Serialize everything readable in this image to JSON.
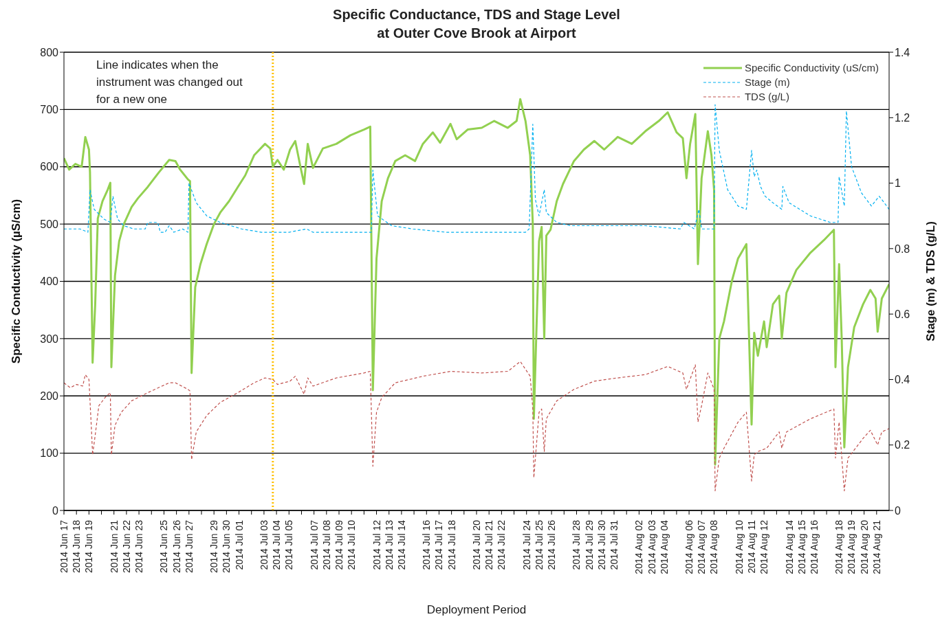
{
  "chart_data": {
    "type": "line",
    "title": "Specific Conductance, TDS and Stage Level\nat Outer Cove Brook at Airport",
    "xlabel": "Deployment Period",
    "ylabel": "Specific Conductivity  (µS/cm)",
    "y2label": "Stage (m) & TDS (g/L)",
    "annotations": [
      "Line indicates when the instrument was changed out for a new one"
    ],
    "xlim": [
      "2014-06-17",
      "2014-08-22"
    ],
    "xticks": [
      {
        "value": "2014-06-17",
        "label": "2014 Jun 17"
      },
      {
        "value": "2014-06-18",
        "label": "2014 Jun 18"
      },
      {
        "value": "2014-06-19",
        "label": "2014 Jun 19"
      },
      {
        "value": "2014-06-20",
        "label": null
      },
      {
        "value": "2014-06-21",
        "label": "2014 Jun 21"
      },
      {
        "value": "2014-06-22",
        "label": "2014 Jun 22"
      },
      {
        "value": "2014-06-23",
        "label": "2014 Jun 23"
      },
      {
        "value": "2014-06-24",
        "label": null
      },
      {
        "value": "2014-06-25",
        "label": "2014 Jun 25"
      },
      {
        "value": "2014-06-26",
        "label": "2014 Jun 26"
      },
      {
        "value": "2014-06-27",
        "label": "2014 Jun 27"
      },
      {
        "value": "2014-06-28",
        "label": null
      },
      {
        "value": "2014-06-29",
        "label": "2014 Jun 29"
      },
      {
        "value": "2014-06-30",
        "label": "2014 Jun 30"
      },
      {
        "value": "2014-07-01",
        "label": "2014 Jul 01"
      },
      {
        "value": "2014-07-02",
        "label": null
      },
      {
        "value": "2014-07-03",
        "label": "2014 Jul 03"
      },
      {
        "value": "2014-07-04",
        "label": "2014 Jul 04"
      },
      {
        "value": "2014-07-05",
        "label": "2014 Jul 05"
      },
      {
        "value": "2014-07-06",
        "label": null
      },
      {
        "value": "2014-07-07",
        "label": "2014 Jul 07"
      },
      {
        "value": "2014-07-08",
        "label": "2014 Jul 08"
      },
      {
        "value": "2014-07-09",
        "label": "2014 Jul 09"
      },
      {
        "value": "2014-07-10",
        "label": "2014 Jul 10"
      },
      {
        "value": "2014-07-11",
        "label": null
      },
      {
        "value": "2014-07-12",
        "label": "2014 Jul 12"
      },
      {
        "value": "2014-07-13",
        "label": "2014 Jul 13"
      },
      {
        "value": "2014-07-14",
        "label": "2014 Jul 14"
      },
      {
        "value": "2014-07-15",
        "label": null
      },
      {
        "value": "2014-07-16",
        "label": "2014 Jul 16"
      },
      {
        "value": "2014-07-17",
        "label": "2014 Jul 17"
      },
      {
        "value": "2014-07-18",
        "label": "2014 Jul 18"
      },
      {
        "value": "2014-07-19",
        "label": null
      },
      {
        "value": "2014-07-20",
        "label": "2014 Jul 20"
      },
      {
        "value": "2014-07-21",
        "label": "2014 Jul 21"
      },
      {
        "value": "2014-07-22",
        "label": "2014 Jul 22"
      },
      {
        "value": "2014-07-23",
        "label": null
      },
      {
        "value": "2014-07-24",
        "label": "2014 Jul 24"
      },
      {
        "value": "2014-07-25",
        "label": "2014 Jul 25"
      },
      {
        "value": "2014-07-26",
        "label": "2014 Jul 26"
      },
      {
        "value": "2014-07-27",
        "label": null
      },
      {
        "value": "2014-07-28",
        "label": "2014 Jul 28"
      },
      {
        "value": "2014-07-29",
        "label": "2014 Jul 29"
      },
      {
        "value": "2014-07-30",
        "label": "2014 Jul 30"
      },
      {
        "value": "2014-07-31",
        "label": "2014 Jul 31"
      },
      {
        "value": "2014-08-01",
        "label": null
      },
      {
        "value": "2014-08-02",
        "label": "2014 Aug 02"
      },
      {
        "value": "2014-08-03",
        "label": "2014 Aug 03"
      },
      {
        "value": "2014-08-04",
        "label": "2014 Aug 04"
      },
      {
        "value": "2014-08-05",
        "label": null
      },
      {
        "value": "2014-08-06",
        "label": "2014 Aug 06"
      },
      {
        "value": "2014-08-07",
        "label": "2014 Aug 07"
      },
      {
        "value": "2014-08-08",
        "label": "2014 Aug 08"
      },
      {
        "value": "2014-08-09",
        "label": null
      },
      {
        "value": "2014-08-10",
        "label": "2014 Aug 10"
      },
      {
        "value": "2014-08-11",
        "label": "2014 Aug 11"
      },
      {
        "value": "2014-08-12",
        "label": "2014 Aug 12"
      },
      {
        "value": "2014-08-13",
        "label": null
      },
      {
        "value": "2014-08-14",
        "label": "2014 Aug 14"
      },
      {
        "value": "2014-08-15",
        "label": "2014 Aug 15"
      },
      {
        "value": "2014-08-16",
        "label": "2014 Aug 16"
      },
      {
        "value": "2014-08-17",
        "label": null
      },
      {
        "value": "2014-08-18",
        "label": "2014 Aug 18"
      },
      {
        "value": "2014-08-19",
        "label": "2014 Aug 19"
      },
      {
        "value": "2014-08-20",
        "label": "2014 Aug 20"
      },
      {
        "value": "2014-08-21",
        "label": "2014 Aug 21"
      }
    ],
    "ylim": [
      0,
      800
    ],
    "yticks": [
      0,
      100,
      200,
      300,
      400,
      500,
      600,
      700,
      800
    ],
    "y2lim": [
      0,
      1.4
    ],
    "y2ticks": [
      0,
      0.2,
      0.4,
      0.6,
      0.8,
      1,
      1.2,
      1.4
    ],
    "grid": "y",
    "legend": "top right",
    "ref_lines": [
      {
        "axis": "x",
        "value": "2014-07-03T17:00",
        "color": "#ffc000",
        "line_style": "dotted"
      }
    ],
    "series": [
      {
        "name": "Specific Conductivity (uS/cm)",
        "color": "#92d050",
        "line_style": "solid",
        "x": [
          "2014-06-17T00:00",
          "2014-06-17T10:00",
          "2014-06-17T22:00",
          "2014-06-18T10:00",
          "2014-06-18T17:00",
          "2014-06-19T00:00",
          "2014-06-19T02:00",
          "2014-06-19T07:00",
          "2014-06-19T12:00",
          "2014-06-19T17:00",
          "2014-06-20T02:00",
          "2014-06-20T12:00",
          "2014-06-20T17:00",
          "2014-06-20T19:00",
          "2014-06-21T02:00",
          "2014-06-21T10:00",
          "2014-06-21T19:00",
          "2014-06-22T10:00",
          "2014-06-22T22:00",
          "2014-06-23T17:00",
          "2014-06-24T14:00",
          "2014-06-25T10:00",
          "2014-06-25T22:00",
          "2014-06-26T07:00",
          "2014-06-26T22:00",
          "2014-06-27T02:00",
          "2014-06-27T05:00",
          "2014-06-27T12:00",
          "2014-06-27T22:00",
          "2014-06-28T10:00",
          "2014-06-29T00:00",
          "2014-06-29T12:00",
          "2014-06-30T05:00",
          "2014-06-30T22:00",
          "2014-07-01T12:00",
          "2014-07-02T05:00",
          "2014-07-03T02:00",
          "2014-07-03T12:00",
          "2014-07-03T17:00",
          "2014-07-04T02:00",
          "2014-07-04T14:00",
          "2014-07-05T02:00",
          "2014-07-05T12:00",
          "2014-07-05T22:00",
          "2014-07-06T05:00",
          "2014-07-06T12:00",
          "2014-07-06T22:00",
          "2014-07-07T17:00",
          "2014-07-08T19:00",
          "2014-07-09T22:00",
          "2014-07-11T00:00",
          "2014-07-11T12:00",
          "2014-07-11T17:00",
          "2014-07-12T00:00",
          "2014-07-12T10:00",
          "2014-07-12T22:00",
          "2014-07-13T12:00",
          "2014-07-14T07:00",
          "2014-07-15T02:00",
          "2014-07-15T17:00",
          "2014-07-16T12:00",
          "2014-07-17T02:00",
          "2014-07-17T22:00",
          "2014-07-18T10:00",
          "2014-07-19T07:00",
          "2014-07-20T10:00",
          "2014-07-21T10:00",
          "2014-07-22T12:00",
          "2014-07-23T05:00",
          "2014-07-23T12:00",
          "2014-07-23T22:00",
          "2014-07-24T07:00",
          "2014-07-24T12:00",
          "2014-07-24T14:00",
          "2014-07-25T00:00",
          "2014-07-25T05:00",
          "2014-07-25T10:00",
          "2014-07-25T14:00",
          "2014-07-25T22:00",
          "2014-07-26T10:00",
          "2014-07-26T22:00",
          "2014-07-27T19:00",
          "2014-07-28T14:00",
          "2014-07-29T10:00",
          "2014-07-30T05:00",
          "2014-07-31T07:00",
          "2014-08-01T10:00",
          "2014-08-02T12:00",
          "2014-08-03T14:00",
          "2014-08-04T07:00",
          "2014-08-05T00:00",
          "2014-08-05T12:00",
          "2014-08-05T19:00",
          "2014-08-06T02:00",
          "2014-08-06T12:00",
          "2014-08-06T17:00",
          "2014-08-07T00:00",
          "2014-08-07T12:00",
          "2014-08-07T19:00",
          "2014-08-08T00:00",
          "2014-08-08T02:00",
          "2014-08-08T10:00",
          "2014-08-08T19:00",
          "2014-08-09T10:00",
          "2014-08-09T22:00",
          "2014-08-10T14:00",
          "2014-08-11T00:00",
          "2014-08-11T05:00",
          "2014-08-11T12:00",
          "2014-08-12T00:00",
          "2014-08-12T05:00",
          "2014-08-12T17:00",
          "2014-08-13T05:00",
          "2014-08-13T10:00",
          "2014-08-13T19:00",
          "2014-08-14T14:00",
          "2014-08-15T17:00",
          "2014-08-16T19:00",
          "2014-08-17T14:00",
          "2014-08-17T17:00",
          "2014-08-18T00:00",
          "2014-08-18T05:00",
          "2014-08-18T10:00",
          "2014-08-18T17:00",
          "2014-08-19T05:00",
          "2014-08-19T22:00",
          "2014-08-20T12:00",
          "2014-08-20T22:00",
          "2014-08-21T02:00",
          "2014-08-21T10:00",
          "2014-08-22T00:00"
        ],
        "values": [
          615,
          595,
          605,
          600,
          652,
          630,
          590,
          258,
          360,
          510,
          540,
          560,
          572,
          250,
          410,
          470,
          500,
          530,
          545,
          565,
          590,
          612,
          610,
          595,
          578,
          575,
          240,
          390,
          430,
          465,
          500,
          520,
          540,
          565,
          585,
          620,
          640,
          632,
          600,
          612,
          595,
          630,
          645,
          600,
          570,
          640,
          598,
          632,
          640,
          655,
          665,
          670,
          210,
          440,
          540,
          580,
          610,
          620,
          610,
          640,
          660,
          642,
          675,
          648,
          665,
          668,
          680,
          668,
          680,
          718,
          680,
          620,
          500,
          160,
          470,
          495,
          300,
          480,
          490,
          540,
          570,
          610,
          630,
          645,
          630,
          652,
          640,
          662,
          680,
          695,
          660,
          650,
          580,
          640,
          692,
          430,
          580,
          662,
          620,
          560,
          80,
          300,
          330,
          400,
          440,
          465,
          150,
          310,
          270,
          330,
          285,
          360,
          375,
          300,
          380,
          420,
          450,
          472,
          490,
          250,
          430,
          300,
          110,
          250,
          320,
          360,
          385,
          370,
          312,
          370,
          395
        ]
      },
      {
        "name": "Stage (m)",
        "color": "#00b0f0",
        "line_style": "dashed",
        "axis": "y2",
        "x": [
          "2014-06-17T00:00",
          "2014-06-18T07:00",
          "2014-06-18T22:00",
          "2014-06-19T02:00",
          "2014-06-19T10:00",
          "2014-06-20T05:00",
          "2014-06-20T17:00",
          "2014-06-20T22:00",
          "2014-06-21T07:00",
          "2014-06-21T19:00",
          "2014-06-22T14:00",
          "2014-06-23T12:00",
          "2014-06-23T17:00",
          "2014-06-24T12:00",
          "2014-06-24T17:00",
          "2014-06-25T02:00",
          "2014-06-25T10:00",
          "2014-06-25T19:00",
          "2014-06-26T12:00",
          "2014-06-26T22:00",
          "2014-06-27T00:00",
          "2014-06-27T14:00",
          "2014-06-28T10:00",
          "2014-06-29T12:00",
          "2014-07-01T05:00",
          "2014-07-02T19:00",
          "2014-07-05T00:00",
          "2014-07-06T10:00",
          "2014-07-06T22:00",
          "2014-07-08T19:00",
          "2014-07-10T12:00",
          "2014-07-11T14:00",
          "2014-07-11T17:00",
          "2014-07-12T02:00",
          "2014-07-13T05:00",
          "2014-07-14T22:00",
          "2014-07-17T14:00",
          "2014-07-20T10:00",
          "2014-07-23T22:00",
          "2014-07-24T05:00",
          "2014-07-24T12:00",
          "2014-07-24T17:00",
          "2014-07-25T00:00",
          "2014-07-25T10:00",
          "2014-07-25T14:00",
          "2014-07-26T10:00",
          "2014-07-27T12:00",
          "2014-07-30T05:00",
          "2014-08-02T12:00",
          "2014-08-05T07:00",
          "2014-08-05T14:00",
          "2014-08-06T10:00",
          "2014-08-06T19:00",
          "2014-08-07T00:00",
          "2014-08-08T00:00",
          "2014-08-08T02:00",
          "2014-08-08T10:00",
          "2014-08-09T02:00",
          "2014-08-09T22:00",
          "2014-08-10T14:00",
          "2014-08-11T00:00",
          "2014-08-11T05:00",
          "2014-08-11T10:00",
          "2014-08-11T17:00",
          "2014-08-12T02:00",
          "2014-08-12T17:00",
          "2014-08-13T10:00",
          "2014-08-13T12:00",
          "2014-08-14T00:00",
          "2014-08-15T17:00",
          "2014-08-17T07:00",
          "2014-08-17T22:00",
          "2014-08-18T00:00",
          "2014-08-18T10:00",
          "2014-08-18T14:00",
          "2014-08-19T00:00",
          "2014-08-19T19:00",
          "2014-08-20T14:00",
          "2014-08-21T05:00",
          "2014-08-21T10:00",
          "2014-08-22T00:00"
        ],
        "values": [
          0.86,
          0.86,
          0.85,
          0.98,
          0.92,
          0.89,
          0.88,
          0.96,
          0.89,
          0.87,
          0.86,
          0.86,
          0.88,
          0.88,
          0.85,
          0.85,
          0.87,
          0.85,
          0.86,
          0.85,
          1.0,
          0.94,
          0.9,
          0.88,
          0.86,
          0.85,
          0.85,
          0.86,
          0.85,
          0.85,
          0.85,
          0.85,
          1.04,
          0.9,
          0.87,
          0.86,
          0.85,
          0.85,
          0.85,
          0.86,
          1.18,
          0.95,
          0.9,
          0.98,
          0.91,
          0.88,
          0.87,
          0.87,
          0.87,
          0.86,
          0.88,
          0.86,
          0.92,
          0.86,
          0.86,
          1.24,
          1.1,
          0.98,
          0.93,
          0.92,
          1.1,
          1.02,
          1.04,
          0.99,
          0.96,
          0.94,
          0.92,
          0.99,
          0.94,
          0.9,
          0.88,
          0.88,
          1.02,
          0.93,
          1.22,
          1.05,
          0.97,
          0.93,
          0.96,
          0.95,
          0.92
        ]
      },
      {
        "name": "TDS (g/L)",
        "color": "#c0504d",
        "line_style": "dashed",
        "axis": "y2",
        "x": [
          "2014-06-17T00:00",
          "2014-06-17T12:00",
          "2014-06-18T00:00",
          "2014-06-18T12:00",
          "2014-06-18T17:00",
          "2014-06-19T00:00",
          "2014-06-19T05:00",
          "2014-06-19T07:00",
          "2014-06-19T12:00",
          "2014-06-19T19:00",
          "2014-06-20T07:00",
          "2014-06-20T17:00",
          "2014-06-20T19:00",
          "2014-06-21T02:00",
          "2014-06-21T14:00",
          "2014-06-22T10:00",
          "2014-06-23T17:00",
          "2014-06-25T10:00",
          "2014-06-25T22:00",
          "2014-06-26T22:00",
          "2014-06-27T02:00",
          "2014-06-27T05:00",
          "2014-06-27T14:00",
          "2014-06-28T10:00",
          "2014-06-29T12:00",
          "2014-06-30T22:00",
          "2014-07-02T05:00",
          "2014-07-03T02:00",
          "2014-07-03T17:00",
          "2014-07-04T02:00",
          "2014-07-05T02:00",
          "2014-07-05T12:00",
          "2014-07-06T05:00",
          "2014-07-06T12:00",
          "2014-07-06T22:00",
          "2014-07-08T19:00",
          "2014-07-11T00:00",
          "2014-07-11T12:00",
          "2014-07-11T14:00",
          "2014-07-11T17:00",
          "2014-07-12T00:00",
          "2014-07-12T10:00",
          "2014-07-13T12:00",
          "2014-07-15T17:00",
          "2014-07-17T22:00",
          "2014-07-20T10:00",
          "2014-07-22T12:00",
          "2014-07-23T12:00",
          "2014-07-24T07:00",
          "2014-07-24T12:00",
          "2014-07-24T14:00",
          "2014-07-25T00:00",
          "2014-07-25T05:00",
          "2014-07-25T10:00",
          "2014-07-25T14:00",
          "2014-07-26T10:00",
          "2014-07-27T19:00",
          "2014-07-29T10:00",
          "2014-07-31T07:00",
          "2014-08-02T12:00",
          "2014-08-04T07:00",
          "2014-08-05T12:00",
          "2014-08-05T19:00",
          "2014-08-06T12:00",
          "2014-08-06T17:00",
          "2014-08-07T00:00",
          "2014-08-07T12:00",
          "2014-08-08T00:00",
          "2014-08-08T02:00",
          "2014-08-08T10:00",
          "2014-08-08T19:00",
          "2014-08-09T22:00",
          "2014-08-10T14:00",
          "2014-08-11T00:00",
          "2014-08-11T05:00",
          "2014-08-11T12:00",
          "2014-08-12T05:00",
          "2014-08-13T05:00",
          "2014-08-13T10:00",
          "2014-08-13T19:00",
          "2014-08-15T17:00",
          "2014-08-17T14:00",
          "2014-08-17T17:00",
          "2014-08-18T00:00",
          "2014-08-18T10:00",
          "2014-08-18T17:00",
          "2014-08-19T22:00",
          "2014-08-20T12:00",
          "2014-08-21T02:00",
          "2014-08-21T10:00",
          "2014-08-22T00:00"
        ],
        "values": [
          0.39,
          0.375,
          0.385,
          0.38,
          0.415,
          0.4,
          0.24,
          0.17,
          0.23,
          0.32,
          0.345,
          0.36,
          0.17,
          0.26,
          0.3,
          0.335,
          0.36,
          0.39,
          0.39,
          0.37,
          0.365,
          0.155,
          0.24,
          0.29,
          0.33,
          0.36,
          0.39,
          0.405,
          0.4,
          0.385,
          0.395,
          0.41,
          0.355,
          0.405,
          0.38,
          0.405,
          0.42,
          0.425,
          0.31,
          0.135,
          0.3,
          0.345,
          0.39,
          0.41,
          0.425,
          0.42,
          0.425,
          0.455,
          0.41,
          0.31,
          0.1,
          0.3,
          0.31,
          0.18,
          0.28,
          0.335,
          0.37,
          0.395,
          0.405,
          0.415,
          0.44,
          0.42,
          0.37,
          0.445,
          0.27,
          0.32,
          0.42,
          0.37,
          0.06,
          0.16,
          0.19,
          0.27,
          0.3,
          0.09,
          0.17,
          0.18,
          0.19,
          0.24,
          0.19,
          0.24,
          0.28,
          0.31,
          0.16,
          0.27,
          0.06,
          0.16,
          0.22,
          0.245,
          0.2,
          0.24,
          0.25
        ]
      }
    ]
  }
}
